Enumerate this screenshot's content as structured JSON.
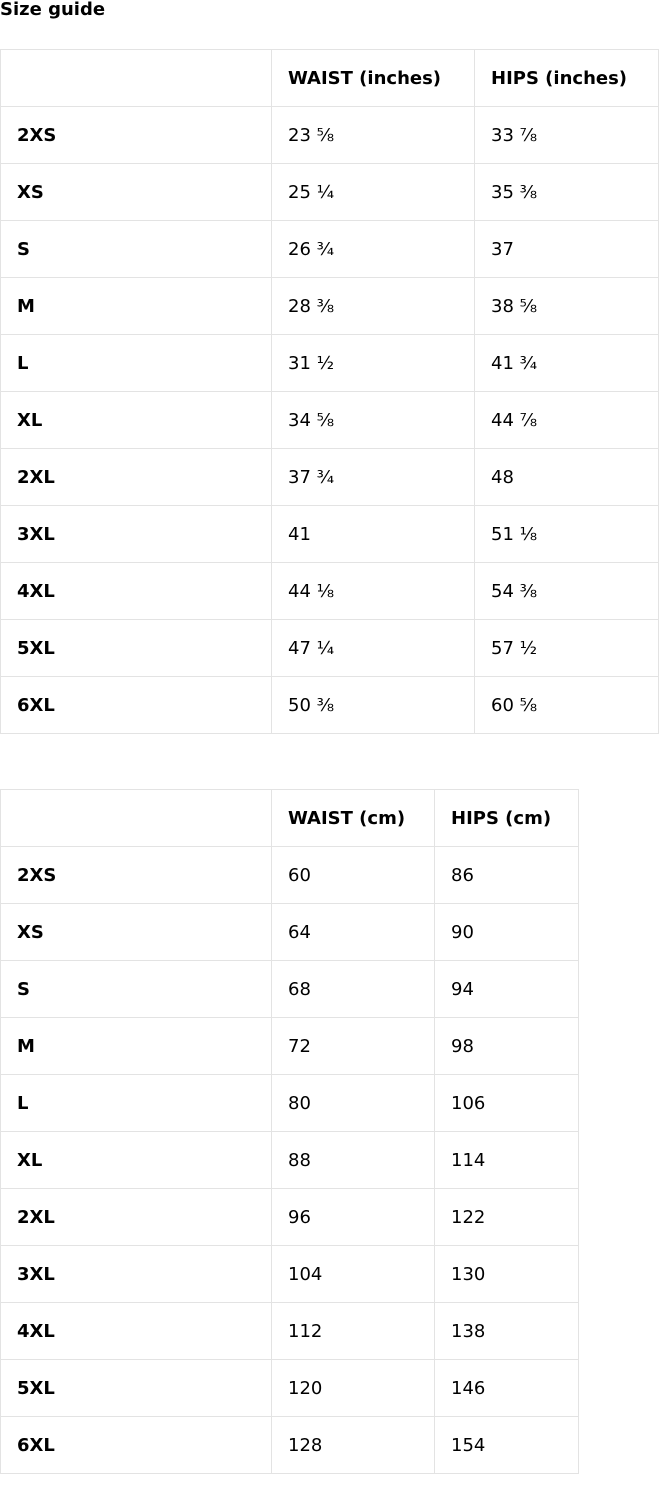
{
  "title": "Size guide",
  "inches_table": {
    "headers": [
      "",
      "WAIST (inches)",
      "HIPS (inches)"
    ],
    "rows": [
      [
        "2XS",
        "23 ⅝",
        "33 ⅞"
      ],
      [
        "XS",
        "25 ¼",
        "35 ⅜"
      ],
      [
        "S",
        "26 ¾",
        "37"
      ],
      [
        "M",
        "28 ⅜",
        "38 ⅝"
      ],
      [
        "L",
        "31 ½",
        "41 ¾"
      ],
      [
        "XL",
        "34 ⅝",
        "44 ⅞"
      ],
      [
        "2XL",
        "37 ¾",
        "48"
      ],
      [
        "3XL",
        "41",
        "51 ⅛"
      ],
      [
        "4XL",
        "44 ⅛",
        "54 ⅜"
      ],
      [
        "5XL",
        "47 ¼",
        "57 ½"
      ],
      [
        "6XL",
        "50 ⅜",
        "60 ⅝"
      ]
    ]
  },
  "cm_table": {
    "headers": [
      "",
      "WAIST (cm)",
      "HIPS (cm)"
    ],
    "rows": [
      [
        "2XS",
        "60",
        "86"
      ],
      [
        "XS",
        "64",
        "90"
      ],
      [
        "S",
        "68",
        "94"
      ],
      [
        "M",
        "72",
        "98"
      ],
      [
        "L",
        "80",
        "106"
      ],
      [
        "XL",
        "88",
        "114"
      ],
      [
        "2XL",
        "96",
        "122"
      ],
      [
        "3XL",
        "104",
        "130"
      ],
      [
        "4XL",
        "112",
        "138"
      ],
      [
        "5XL",
        "120",
        "146"
      ],
      [
        "6XL",
        "128",
        "154"
      ]
    ]
  }
}
